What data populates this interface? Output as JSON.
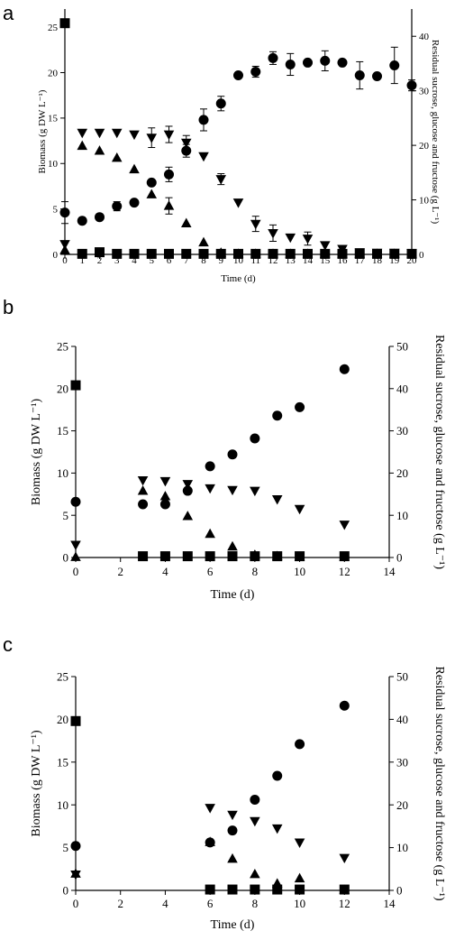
{
  "chart_data": [
    {
      "panel_label": "a",
      "type": "scatter",
      "xlabel": "Time (d)",
      "ylabel": "Biomass (g DW L⁻¹)",
      "y2label": "Residual sucrose, glucose and fructose (g L⁻¹)",
      "xlim": [
        0,
        20
      ],
      "ylim": [
        0,
        27
      ],
      "y2lim": [
        0,
        45
      ],
      "xticks": [
        0,
        1,
        2,
        3,
        4,
        5,
        6,
        7,
        8,
        9,
        10,
        11,
        12,
        13,
        14,
        15,
        16,
        17,
        18,
        19,
        20
      ],
      "yticks": [
        0,
        5,
        10,
        15,
        20,
        25
      ],
      "y2ticks": [
        0,
        10,
        20,
        30,
        40
      ],
      "series": [
        {
          "marker": "circle",
          "axis": "left",
          "x": [
            0,
            1,
            2,
            3,
            4,
            5,
            6,
            7,
            8,
            9,
            10,
            11,
            12,
            13,
            14,
            15,
            16,
            17,
            18,
            19,
            20
          ],
          "y": [
            4.6,
            3.7,
            4.1,
            5.3,
            5.7,
            7.9,
            8.8,
            11.4,
            14.8,
            16.6,
            19.7,
            20.1,
            21.6,
            20.9,
            21.1,
            21.3,
            21.1,
            19.7,
            19.6,
            20.8,
            18.6
          ],
          "err": [
            1.2,
            0,
            0,
            0.5,
            0,
            0,
            0.8,
            0.7,
            1.2,
            0.8,
            0,
            0.6,
            0.7,
            1.2,
            0,
            1.1,
            0,
            1.5,
            0,
            2.0,
            0.6
          ]
        },
        {
          "marker": "triangle-down",
          "axis": "right",
          "x": [
            0,
            1,
            2,
            3,
            4,
            5,
            6,
            7,
            8,
            9,
            10,
            11,
            12,
            13,
            14,
            15,
            16,
            17,
            18,
            19,
            20
          ],
          "y": [
            1.9,
            22.3,
            22.3,
            22.3,
            22.0,
            21.4,
            22.0,
            20.5,
            18.0,
            13.8,
            9.5,
            5.6,
            3.9,
            3.1,
            2.9,
            1.7,
            1.0,
            0.4,
            0.3,
            0.3,
            0.2
          ],
          "err": [
            0,
            0,
            0,
            0,
            0,
            1.8,
            1.5,
            1.3,
            0,
            1.0,
            0,
            1.4,
            1.5,
            0,
            1.2,
            0,
            0,
            0,
            0,
            0,
            0
          ]
        },
        {
          "marker": "triangle-up",
          "axis": "right",
          "x": [
            0,
            1,
            2,
            3,
            4,
            5,
            6,
            7,
            8,
            9,
            10,
            11,
            12,
            13,
            14,
            15,
            16,
            17,
            18,
            19,
            20
          ],
          "y": [
            0.8,
            19.9,
            19.0,
            17.7,
            15.6,
            11.0,
            8.9,
            5.7,
            2.2,
            0.3,
            0.1,
            0.1,
            0.1,
            0.1,
            0.1,
            0.1,
            0.1,
            0.1,
            0.1,
            0.1,
            0.1
          ],
          "err": [
            0,
            0,
            0,
            0,
            0,
            0,
            1.5,
            0,
            0,
            0,
            0,
            0,
            0,
            0,
            0,
            0,
            0,
            0,
            0,
            0,
            0
          ]
        },
        {
          "marker": "square",
          "axis": "right",
          "x": [
            0,
            1,
            2,
            3,
            4,
            5,
            6,
            7,
            8,
            9,
            10,
            11,
            12,
            13,
            14,
            15,
            16,
            17,
            18,
            19,
            20
          ],
          "y": [
            42.4,
            0.1,
            0.4,
            0.1,
            0.1,
            0.1,
            0.1,
            0.1,
            0.1,
            0.1,
            0.1,
            0.1,
            0.1,
            0.1,
            0.1,
            0.1,
            0.1,
            0.1,
            0.1,
            0.1,
            0.1
          ],
          "err": [
            0,
            0,
            0,
            0,
            0,
            0,
            0,
            0,
            0,
            0,
            0,
            0,
            0,
            0,
            0,
            0,
            0,
            0,
            0,
            0,
            0
          ]
        }
      ]
    },
    {
      "panel_label": "b",
      "type": "scatter",
      "xlabel": "Time (d)",
      "ylabel": "Biomass (g DW L⁻¹)",
      "y2label": "Residual sucrose, glucose and fructose (g L⁻¹)",
      "xlim": [
        0,
        14
      ],
      "ylim": [
        0,
        25
      ],
      "y2lim": [
        0,
        50
      ],
      "xticks": [
        0,
        2,
        4,
        6,
        8,
        10,
        12,
        14
      ],
      "yticks": [
        0,
        5,
        10,
        15,
        20,
        25
      ],
      "y2ticks": [
        0,
        10,
        20,
        30,
        40,
        50
      ],
      "series": [
        {
          "marker": "circle",
          "axis": "left",
          "x": [
            0,
            3,
            4,
            5,
            6,
            7,
            8,
            9,
            10,
            12
          ],
          "y": [
            6.6,
            6.3,
            6.3,
            7.9,
            10.8,
            12.2,
            14.1,
            16.8,
            17.8,
            22.3
          ]
        },
        {
          "marker": "triangle-down",
          "axis": "right",
          "x": [
            0,
            3,
            4,
            5,
            6,
            7,
            8,
            9,
            10,
            12
          ],
          "y": [
            3.0,
            18.3,
            18.1,
            17.4,
            16.4,
            16.0,
            15.8,
            13.8,
            11.5,
            7.8
          ]
        },
        {
          "marker": "triangle-up",
          "axis": "right",
          "x": [
            0,
            3,
            4,
            5,
            6,
            7,
            8,
            9,
            10,
            12
          ],
          "y": [
            0.1,
            15.8,
            14.5,
            9.8,
            5.6,
            2.6,
            0.6,
            0.3,
            0.1,
            0.1
          ]
        },
        {
          "marker": "square",
          "axis": "right",
          "x": [
            0,
            3,
            4,
            5,
            6,
            7,
            8,
            9,
            10,
            12
          ],
          "y": [
            40.8,
            0.3,
            0.3,
            0.3,
            0.3,
            0.3,
            0.3,
            0.3,
            0.3,
            0.3
          ]
        }
      ]
    },
    {
      "panel_label": "c",
      "type": "scatter",
      "xlabel": "Time (d)",
      "ylabel": "Biomass (g DW L⁻¹)",
      "y2label": "Residual sucrose, glucose and fructose (g L⁻¹)",
      "xlim": [
        0,
        14
      ],
      "ylim": [
        0,
        25
      ],
      "y2lim": [
        0,
        50
      ],
      "xticks": [
        0,
        2,
        4,
        6,
        8,
        10,
        12,
        14
      ],
      "yticks": [
        0,
        5,
        10,
        15,
        20,
        25
      ],
      "y2ticks": [
        0,
        10,
        20,
        30,
        40,
        50
      ],
      "series": [
        {
          "marker": "circle",
          "axis": "left",
          "x": [
            0,
            6,
            7,
            8,
            9,
            10,
            12
          ],
          "y": [
            5.2,
            5.6,
            7.0,
            10.6,
            13.4,
            17.1,
            21.6
          ]
        },
        {
          "marker": "triangle-down",
          "axis": "right",
          "x": [
            0,
            6,
            7,
            8,
            9,
            10,
            12
          ],
          "y": [
            3.7,
            19.3,
            17.7,
            16.2,
            14.5,
            11.2,
            7.6
          ]
        },
        {
          "marker": "triangle-up",
          "axis": "right",
          "x": [
            0,
            6,
            7,
            8,
            9,
            10,
            12
          ],
          "y": [
            3.9,
            11.3,
            7.4,
            3.8,
            1.6,
            2.8,
            0.1
          ]
        },
        {
          "marker": "square",
          "axis": "right",
          "x": [
            0,
            6,
            7,
            8,
            9,
            10,
            12
          ],
          "y": [
            39.6,
            0.2,
            0.2,
            0.2,
            0.2,
            0.2,
            0.2
          ]
        }
      ]
    }
  ]
}
